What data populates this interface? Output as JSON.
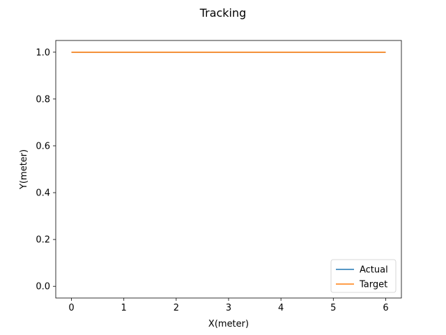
{
  "chart_data": {
    "type": "line",
    "title": "Tracking",
    "xlabel": "X(meter)",
    "ylabel": "Y(meter)",
    "xlim": [
      -0.3,
      6.3
    ],
    "ylim": [
      -0.05,
      1.05
    ],
    "xticks": [
      0,
      1,
      2,
      3,
      4,
      5,
      6
    ],
    "xtick_labels": [
      "0",
      "1",
      "2",
      "3",
      "4",
      "5",
      "6"
    ],
    "yticks": [
      0.0,
      0.2,
      0.4,
      0.6,
      0.8,
      1.0
    ],
    "ytick_labels": [
      "0.0",
      "0.2",
      "0.4",
      "0.6",
      "0.8",
      "1.0"
    ],
    "grid": false,
    "legend_position": "lower-right",
    "series": [
      {
        "name": "Actual",
        "color": "#1f77b4",
        "x": [
          0,
          6
        ],
        "y": [
          1.0,
          1.0
        ]
      },
      {
        "name": "Target",
        "color": "#ff7f0e",
        "x": [
          0,
          6
        ],
        "y": [
          1.0,
          1.0
        ]
      }
    ]
  }
}
